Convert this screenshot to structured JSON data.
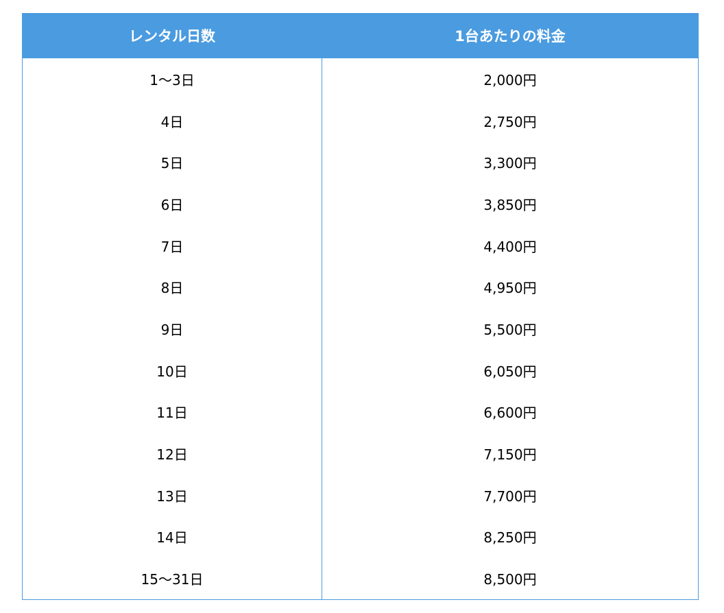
{
  "table": {
    "headers": {
      "days": "レンタル日数",
      "price": "1台あたりの料金"
    },
    "rows": [
      {
        "days": "1〜3日",
        "price": "2,000円"
      },
      {
        "days": "4日",
        "price": "2,750円"
      },
      {
        "days": "5日",
        "price": "3,300円"
      },
      {
        "days": "6日",
        "price": "3,850円"
      },
      {
        "days": "7日",
        "price": "4,400円"
      },
      {
        "days": "8日",
        "price": "4,950円"
      },
      {
        "days": "9日",
        "price": "5,500円"
      },
      {
        "days": "10日",
        "price": "6,050円"
      },
      {
        "days": "11日",
        "price": "6,600円"
      },
      {
        "days": "12日",
        "price": "7,150円"
      },
      {
        "days": "13日",
        "price": "7,700円"
      },
      {
        "days": "14日",
        "price": "8,250円"
      },
      {
        "days": "15〜31日",
        "price": "8,500円"
      }
    ]
  },
  "colors": {
    "header_background": "#4a9be0",
    "header_text": "#ffffff",
    "border": "#4a9be0",
    "body_text": "#000000"
  }
}
